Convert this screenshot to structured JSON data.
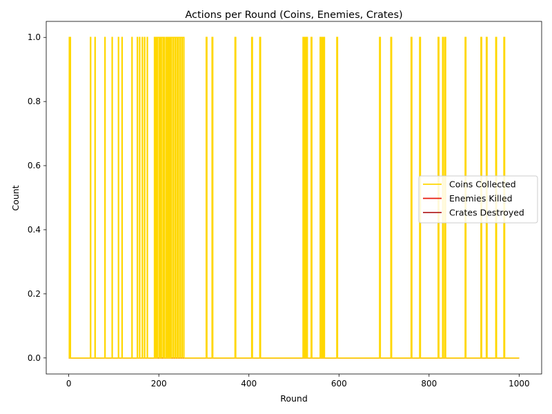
{
  "chart_data": {
    "type": "line",
    "title": "Actions per Round (Coins, Enemies, Crates)",
    "xlabel": "Round",
    "ylabel": "Count",
    "xlim": [
      -50,
      1050
    ],
    "ylim": [
      -0.05,
      1.05
    ],
    "xticks": [
      0,
      200,
      400,
      600,
      800,
      1000
    ],
    "yticks": [
      0.0,
      0.2,
      0.4,
      0.6,
      0.8,
      1.0
    ],
    "xtick_labels": [
      "0",
      "200",
      "400",
      "600",
      "800",
      "1000"
    ],
    "ytick_labels": [
      "0.0",
      "0.2",
      "0.4",
      "0.6",
      "0.8",
      "1.0"
    ],
    "grid": false,
    "legend_position": "center-right",
    "series": [
      {
        "name": "Coins Collected",
        "color": "#FFD700",
        "style": "step",
        "events": [
          1,
          2,
          3,
          4,
          48,
          49,
          58,
          59,
          80,
          81,
          96,
          97,
          110,
          111,
          118,
          119,
          140,
          141,
          152,
          153,
          157,
          158,
          163,
          164,
          168,
          169,
          174,
          175,
          190,
          192,
          193,
          195,
          197,
          200,
          202,
          204,
          206,
          209,
          211,
          213,
          216,
          218,
          220,
          222,
          224,
          226,
          228,
          231,
          233,
          236,
          238,
          241,
          243,
          246,
          248,
          251,
          253,
          256,
          305,
          307,
          318,
          320,
          369,
          371,
          406,
          408,
          424,
          426,
          520,
          521,
          522,
          524,
          525,
          527,
          528,
          530,
          538,
          540,
          558,
          560,
          562,
          564,
          566,
          568,
          595,
          597,
          690,
          692,
          715,
          717,
          760,
          762,
          779,
          781,
          820,
          822,
          830,
          832,
          835,
          837,
          880,
          882,
          915,
          917,
          927,
          929,
          948,
          950,
          966,
          968
        ],
        "end": 1000
      },
      {
        "name": "Enemies Killed",
        "color": "#E8190C",
        "style": "step",
        "events": [],
        "end": 1000
      },
      {
        "name": "Crates Destroyed",
        "color": "#B22222",
        "style": "step",
        "events": [],
        "end": 1000
      }
    ]
  }
}
